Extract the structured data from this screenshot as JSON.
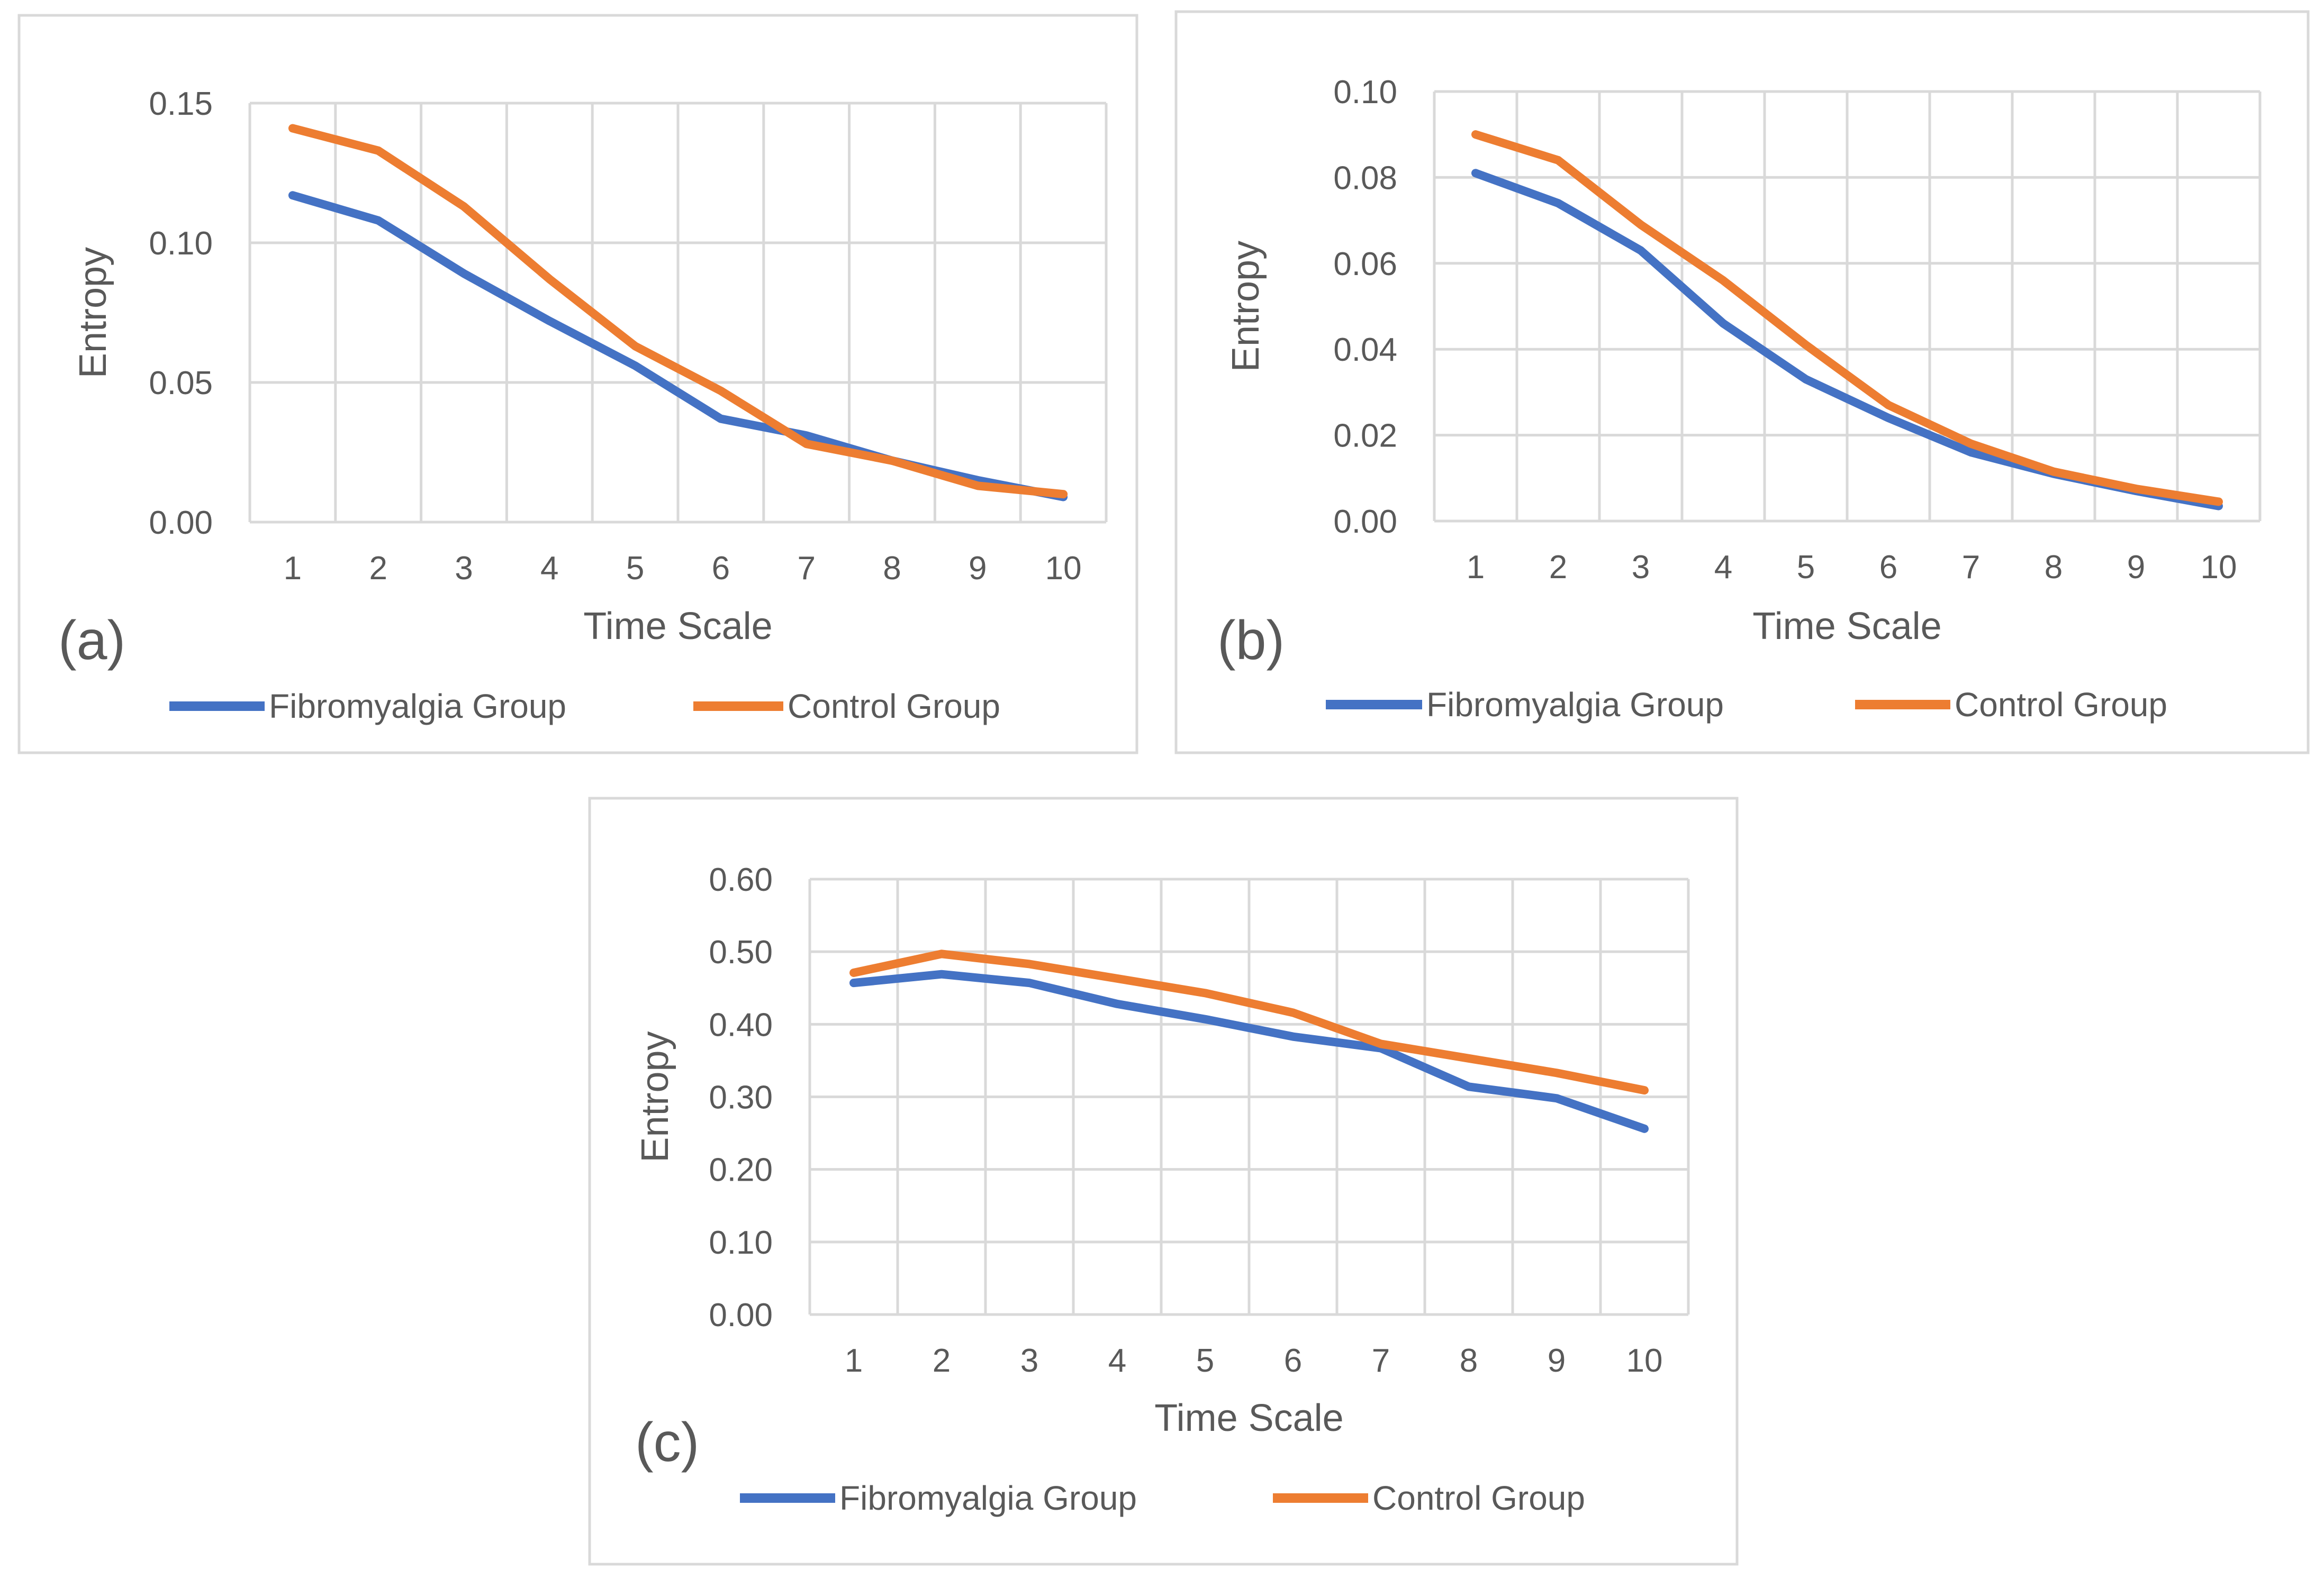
{
  "colors": {
    "fibromyalgia": "#4472C4",
    "control": "#ED7D31"
  },
  "chart_data": [
    {
      "type": "line",
      "panel_label": "(a)",
      "xlabel": "Time Scale",
      "ylabel": "Entropy",
      "categories": [
        "1",
        "2",
        "3",
        "4",
        "5",
        "6",
        "7",
        "8",
        "9",
        "10"
      ],
      "ylim": [
        0,
        0.15
      ],
      "yticks": [
        "0.00",
        "0.05",
        "0.10",
        "0.15"
      ],
      "ytick_values": [
        0,
        0.05,
        0.1,
        0.15
      ],
      "legend_position": "bottom",
      "grid": true,
      "series": [
        {
          "name": "Fibromyalgia Group",
          "color_key": "fibromyalgia",
          "values": [
            0.117,
            0.108,
            0.089,
            0.072,
            0.056,
            0.037,
            0.031,
            0.022,
            0.015,
            0.009
          ]
        },
        {
          "name": "Control Group",
          "color_key": "control",
          "values": [
            0.141,
            0.133,
            0.113,
            0.087,
            0.063,
            0.047,
            0.028,
            0.022,
            0.013,
            0.01
          ]
        }
      ]
    },
    {
      "type": "line",
      "panel_label": "(b)",
      "xlabel": "Time Scale",
      "ylabel": "Entropy",
      "categories": [
        "1",
        "2",
        "3",
        "4",
        "5",
        "6",
        "7",
        "8",
        "9",
        "10"
      ],
      "ylim": [
        0,
        0.1
      ],
      "yticks": [
        "0.00",
        "0.02",
        "0.04",
        "0.06",
        "0.08",
        "0.10"
      ],
      "ytick_values": [
        0,
        0.02,
        0.04,
        0.06,
        0.08,
        0.1
      ],
      "legend_position": "bottom",
      "grid": true,
      "series": [
        {
          "name": "Fibromyalgia Group",
          "color_key": "fibromyalgia",
          "values": [
            0.081,
            0.074,
            0.063,
            0.046,
            0.033,
            0.024,
            0.016,
            0.011,
            0.007,
            0.0035
          ]
        },
        {
          "name": "Control Group",
          "color_key": "control",
          "values": [
            0.09,
            0.084,
            0.069,
            0.056,
            0.041,
            0.027,
            0.018,
            0.0115,
            0.0075,
            0.0045
          ]
        }
      ]
    },
    {
      "type": "line",
      "panel_label": "(c)",
      "xlabel": "Time Scale",
      "ylabel": "Entropy",
      "categories": [
        "1",
        "2",
        "3",
        "4",
        "5",
        "6",
        "7",
        "8",
        "9",
        "10"
      ],
      "ylim": [
        0,
        0.6
      ],
      "yticks": [
        "0.00",
        "0.10",
        "0.20",
        "0.30",
        "0.40",
        "0.50",
        "0.60"
      ],
      "ytick_values": [
        0,
        0.1,
        0.2,
        0.3,
        0.4,
        0.5,
        0.6
      ],
      "legend_position": "bottom",
      "grid": true,
      "series": [
        {
          "name": "Fibromyalgia Group",
          "color_key": "fibromyalgia",
          "values": [
            0.457,
            0.469,
            0.457,
            0.428,
            0.407,
            0.383,
            0.367,
            0.314,
            0.298,
            0.256
          ]
        },
        {
          "name": "Control Group",
          "color_key": "control",
          "values": [
            0.471,
            0.497,
            0.483,
            0.463,
            0.443,
            0.416,
            0.373,
            0.353,
            0.333,
            0.309
          ]
        }
      ]
    }
  ]
}
